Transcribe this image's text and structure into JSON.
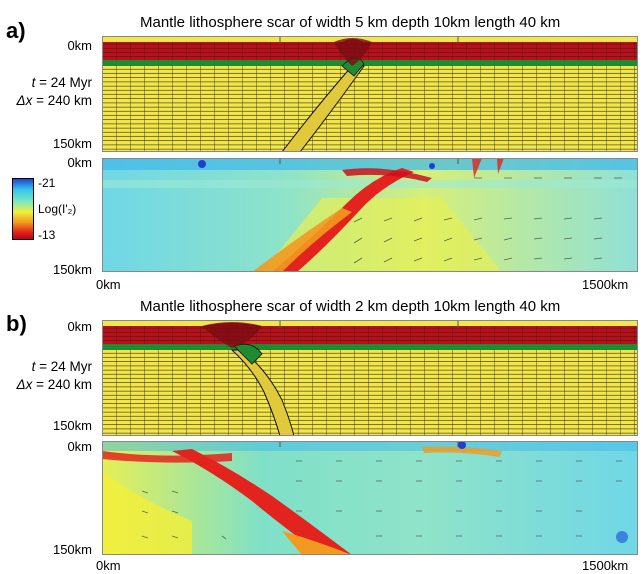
{
  "panels": [
    {
      "label": "a)",
      "title": "Mantle lithosphere scar of width 5 km depth 10km length 40 km",
      "time_symbol": "t",
      "time_value": " = 24 Myr",
      "dx_symbol": "Δx",
      "dx_value": " = 240 km",
      "top_depth": "0km",
      "bottom_depth": "150km",
      "strain_top_depth": "0km",
      "strain_bottom_depth": "150km"
    },
    {
      "label": "b)",
      "title": "Mantle lithosphere scar of width 2 km depth 10km length 40 km",
      "time_symbol": "t",
      "time_value": " = 24 Myr",
      "dx_symbol": "Δx",
      "dx_value": " = 240 km",
      "top_depth": "0km",
      "bottom_depth": "150km",
      "strain_top_depth": "0km",
      "strain_bottom_depth": "150km"
    }
  ],
  "x_axis": {
    "left": "0km",
    "right": "1500km"
  },
  "colorbar": {
    "max_label": "-21",
    "mid_label": "Log(I'₂)",
    "min_label": "-13",
    "colors": [
      "#1f3fcf",
      "#35c4ee",
      "#7fe8c0",
      "#f2ef3a",
      "#f29a1f",
      "#e3231e",
      "#b4001e"
    ]
  },
  "colors": {
    "crust": "#b5121b",
    "lower_crust": "#1f8a2e",
    "mantle": "#f3e64a",
    "strain_bg": "#6fd7e6"
  }
}
